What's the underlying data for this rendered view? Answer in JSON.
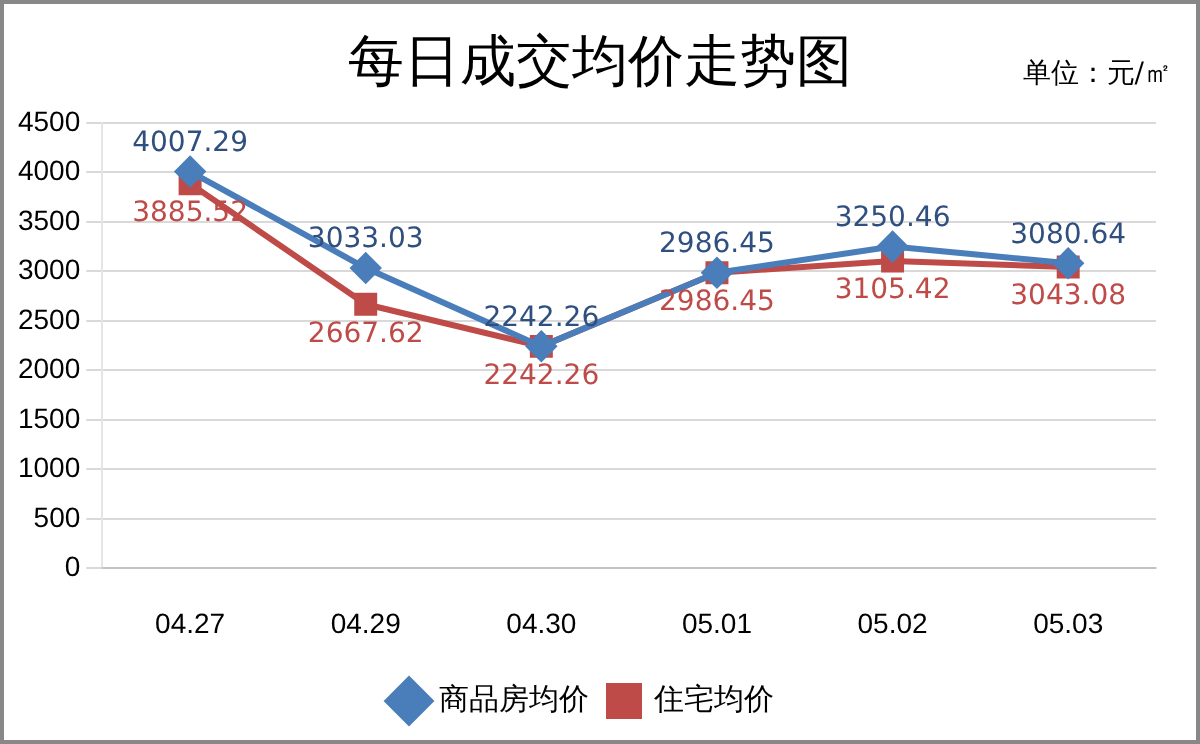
{
  "chart_data": {
    "type": "line",
    "title": "每日成交均价走势图",
    "annotations": [
      "单位：元/㎡"
    ],
    "categories": [
      "04.27",
      "04.29",
      "04.30",
      "05.01",
      "05.02",
      "05.03"
    ],
    "series": [
      {
        "name": "商品房均价",
        "color": "#4a7ebb",
        "marker": "diamond",
        "values": [
          4007.29,
          3033.03,
          2242.26,
          2986.45,
          3250.46,
          3080.64
        ]
      },
      {
        "name": "住宅均价",
        "color": "#be4b48",
        "marker": "square",
        "values": [
          3885.52,
          2667.62,
          2242.26,
          2986.45,
          3105.42,
          3043.08
        ]
      }
    ],
    "ylim": [
      0,
      4500
    ],
    "yticks": [
      0,
      500,
      1000,
      1500,
      2000,
      2500,
      3000,
      3500,
      4000,
      4500
    ],
    "grid": "y",
    "legend": "bottom",
    "data_labels": true
  }
}
